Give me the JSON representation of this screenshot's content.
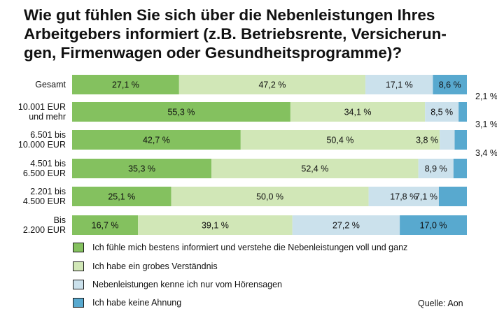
{
  "title": "Wie gut fühlen Sie sich über die Nebenleistungen Ihres Arbeitgebers informiert (z.B. Betriebsrente, Versicherun-gen, Firmenwagen oder Gesundheitsprogramme)?",
  "title_lines": [
    "Wie gut fühlen Sie sich über die Nebenleistungen Ihres",
    "Arbeitgebers informiert (z.B. Betriebsrente, Versicherun-",
    "gen, Firmenwagen oder Gesundheitsprogramme)?"
  ],
  "source": "Quelle: Aon",
  "colors": {
    "dark_green": "#84c15f",
    "light_green": "#d1e7b7",
    "light_blue": "#cbe1ec",
    "blue": "#58a9cf"
  },
  "chart_data": {
    "type": "bar",
    "orientation": "horizontal",
    "stacked": true,
    "percent": true,
    "title": "Wie gut fühlen Sie sich über die Nebenleistungen Ihres Arbeitgebers informiert (z.B. Betriebsrente, Versicherungen, Firmenwagen oder Gesundheitsprogramme)?",
    "categories": [
      [
        "Gesamt"
      ],
      [
        "10.001 EUR",
        "und mehr"
      ],
      [
        "6.501 bis",
        "10.000 EUR"
      ],
      [
        "4.501 bis",
        "6.500 EUR"
      ],
      [
        "2.201 bis",
        "4.500 EUR"
      ],
      [
        "Bis",
        "2.200 EUR"
      ]
    ],
    "series": [
      {
        "name": "Ich fühle mich bestens informiert und verstehe die Nebenleistungen voll und ganz",
        "color": "#84c15f",
        "values": [
          27.1,
          55.3,
          42.7,
          35.3,
          25.1,
          16.7
        ],
        "labels": [
          "27,1 %",
          "55,3 %",
          "42,7 %",
          "35,3 %",
          "25,1 %",
          "16,7 %"
        ]
      },
      {
        "name": "Ich habe ein grobes Verständnis",
        "color": "#d1e7b7",
        "values": [
          47.2,
          34.1,
          50.4,
          52.4,
          50.0,
          39.1
        ],
        "labels": [
          "47,2 %",
          "34,1 %",
          "50,4 %",
          "52,4 %",
          "50,0 %",
          "39,1 %"
        ]
      },
      {
        "name": "Nebenleistungen kenne ich nur vom Hörensagen",
        "color": "#cbe1ec",
        "values": [
          17.1,
          8.5,
          3.8,
          8.9,
          17.8,
          27.2
        ],
        "labels": [
          "17,1 %",
          "8,5 %",
          "3,8 %",
          "8,9 %",
          "17,8 %",
          "27,2 %"
        ]
      },
      {
        "name": "Ich habe keine Ahnung",
        "color": "#58a9cf",
        "values": [
          8.6,
          2.1,
          3.1,
          3.4,
          7.1,
          17.0
        ],
        "labels": [
          "8,6 %",
          "2,1 %",
          "3,1 %",
          "3,4 %",
          "7,1 %",
          "17,0 %"
        ],
        "label_above": [
          false,
          true,
          true,
          true,
          false,
          false
        ]
      }
    ],
    "xlim": [
      0,
      100
    ],
    "legend_position": "bottom"
  }
}
